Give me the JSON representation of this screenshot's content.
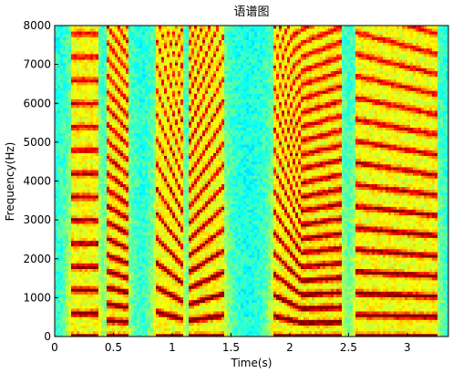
{
  "chart_data": {
    "type": "heatmap",
    "title": "语谱图",
    "xlabel": "Time(s)",
    "ylabel": "Frequency(Hz)",
    "xlim": [
      0,
      3.35
    ],
    "ylim": [
      0,
      8000
    ],
    "xticks": [
      0,
      0.5,
      1,
      1.5,
      2,
      2.5,
      3
    ],
    "xtick_labels": [
      "0",
      "0.5",
      "1",
      "1.5",
      "2",
      "2.5",
      "3"
    ],
    "yticks": [
      0,
      1000,
      2000,
      3000,
      4000,
      5000,
      6000,
      7000,
      8000
    ],
    "ytick_labels": [
      "0",
      "1000",
      "2000",
      "3000",
      "4000",
      "5000",
      "6000",
      "7000",
      "8000"
    ],
    "colormap": "jet",
    "grid": false,
    "segments": [
      {
        "t_start": 0.13,
        "t_end": 0.38,
        "f0_start": 600,
        "f0_end": 600
      },
      {
        "t_start": 0.45,
        "t_end": 0.62,
        "f0_start": 420,
        "f0_end": 380
      },
      {
        "t_start": 0.85,
        "t_end": 1.1,
        "f0_start": 650,
        "f0_end": 450
      },
      {
        "t_start": 1.15,
        "t_end": 1.45,
        "f0_start": 420,
        "f0_end": 560
      },
      {
        "t_start": 1.85,
        "t_end": 2.1,
        "f0_start": 550,
        "f0_end": 360
      },
      {
        "t_start": 2.1,
        "t_end": 2.45,
        "f0_start": 360,
        "f0_end": 380
      },
      {
        "t_start": 2.55,
        "t_end": 3.25,
        "f0_start": 560,
        "f0_end": 520
      }
    ]
  }
}
